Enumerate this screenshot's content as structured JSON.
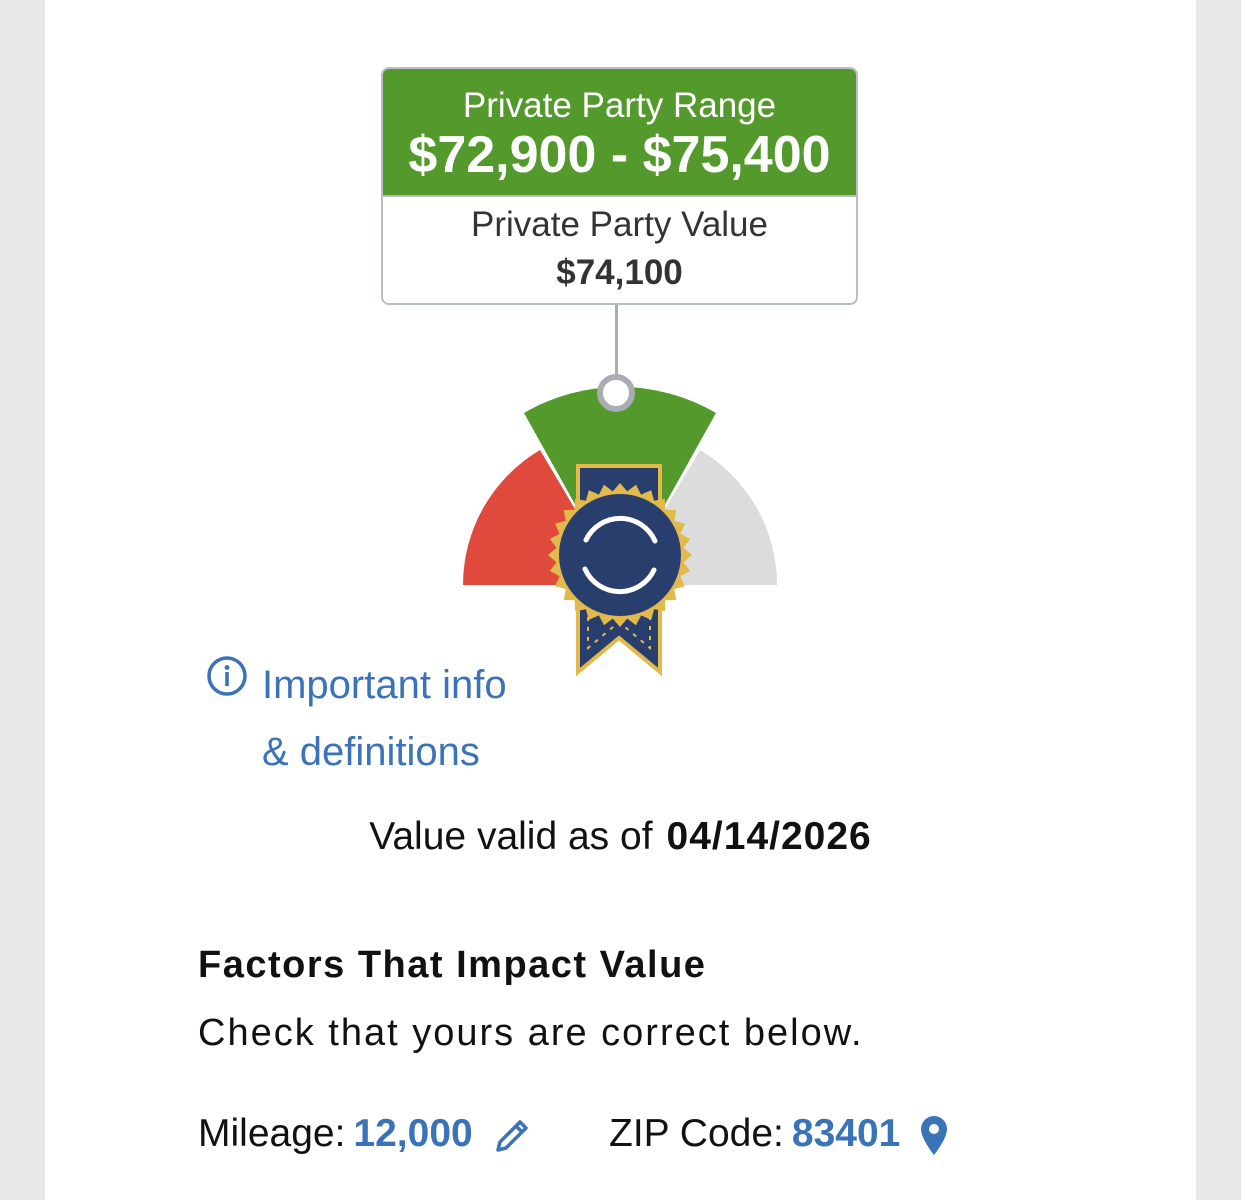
{
  "range": {
    "label": "Private Party Range",
    "value": "$72,900 - $75,400",
    "value_label": "Private Party Value",
    "value_amount": "$74,100"
  },
  "colors": {
    "range_green": "#53992c",
    "gauge_red": "#df4a3c",
    "gauge_gray": "#dcdcdc",
    "ribbon_navy": "#283f6e",
    "ribbon_gold": "#e2b94b",
    "link_blue": "#3a73b8"
  },
  "info_link": {
    "icon": "info-circle-icon",
    "line1": "Important info",
    "line2": "& definitions"
  },
  "valid": {
    "label": "Value valid as of",
    "date": "04/14/2026"
  },
  "factors": {
    "title": "Factors That Impact Value",
    "subtitle": "Check that yours are correct below.",
    "mileage_label": "Mileage:",
    "mileage_value": "12,000",
    "mileage_icon": "pencil-icon",
    "zip_label": "ZIP Code:",
    "zip_value": "83401",
    "zip_icon": "map-pin-icon"
  }
}
